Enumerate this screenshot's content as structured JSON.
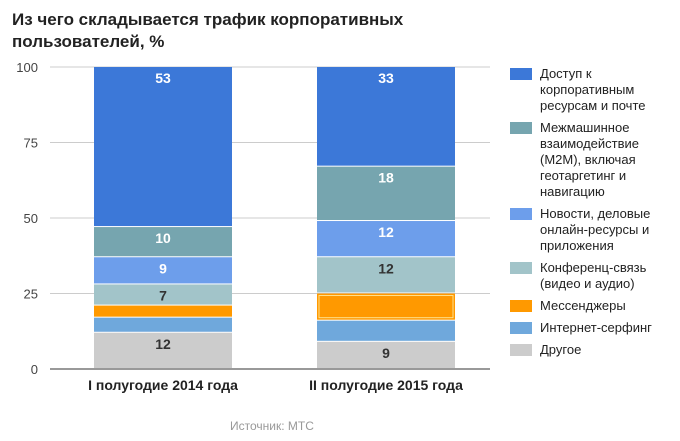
{
  "chart_data": {
    "type": "bar",
    "stacked": true,
    "title": "Из чего складывается трафик корпоративных пользователей, %",
    "categories": [
      "I полугодие 2014 года",
      "II полугодие 2015 года"
    ],
    "ylim": [
      0,
      100
    ],
    "yticks": [
      0,
      25,
      50,
      75,
      100
    ],
    "grid": true,
    "legend": "right",
    "series": [
      {
        "name": "Другое",
        "color": "#cccccc",
        "values": [
          12,
          9
        ],
        "labels": [
          "12",
          "9"
        ]
      },
      {
        "name": "Интернет-серфинг",
        "color": "#6fa8dc",
        "values": [
          5,
          7
        ],
        "labels": [
          "",
          ""
        ]
      },
      {
        "name": "Мессенджеры",
        "color": "#ff9900",
        "values": [
          4,
          9
        ],
        "labels": [
          "",
          ""
        ]
      },
      {
        "name": "Конференц-связь (видео и аудио)",
        "color": "#a2c4c9",
        "values": [
          7,
          12
        ],
        "labels": [
          "7",
          "12"
        ]
      },
      {
        "name": "Новости, деловые онлайн-ресурсы и приложения",
        "color": "#6d9eeb",
        "values": [
          9,
          12
        ],
        "labels": [
          "9",
          "12"
        ]
      },
      {
        "name": "Межмашинное взаимодействие (M2M), включая геотаргетинг и навигацию",
        "color": "#76a5af",
        "values": [
          10,
          18
        ],
        "labels": [
          "10",
          "18"
        ]
      },
      {
        "name": "Доступ к корпоративным ресурсам и почте",
        "color": "#3c78d8",
        "values": [
          53,
          33
        ],
        "labels": [
          "53",
          "33"
        ]
      }
    ]
  },
  "source": "Источник: МТС"
}
